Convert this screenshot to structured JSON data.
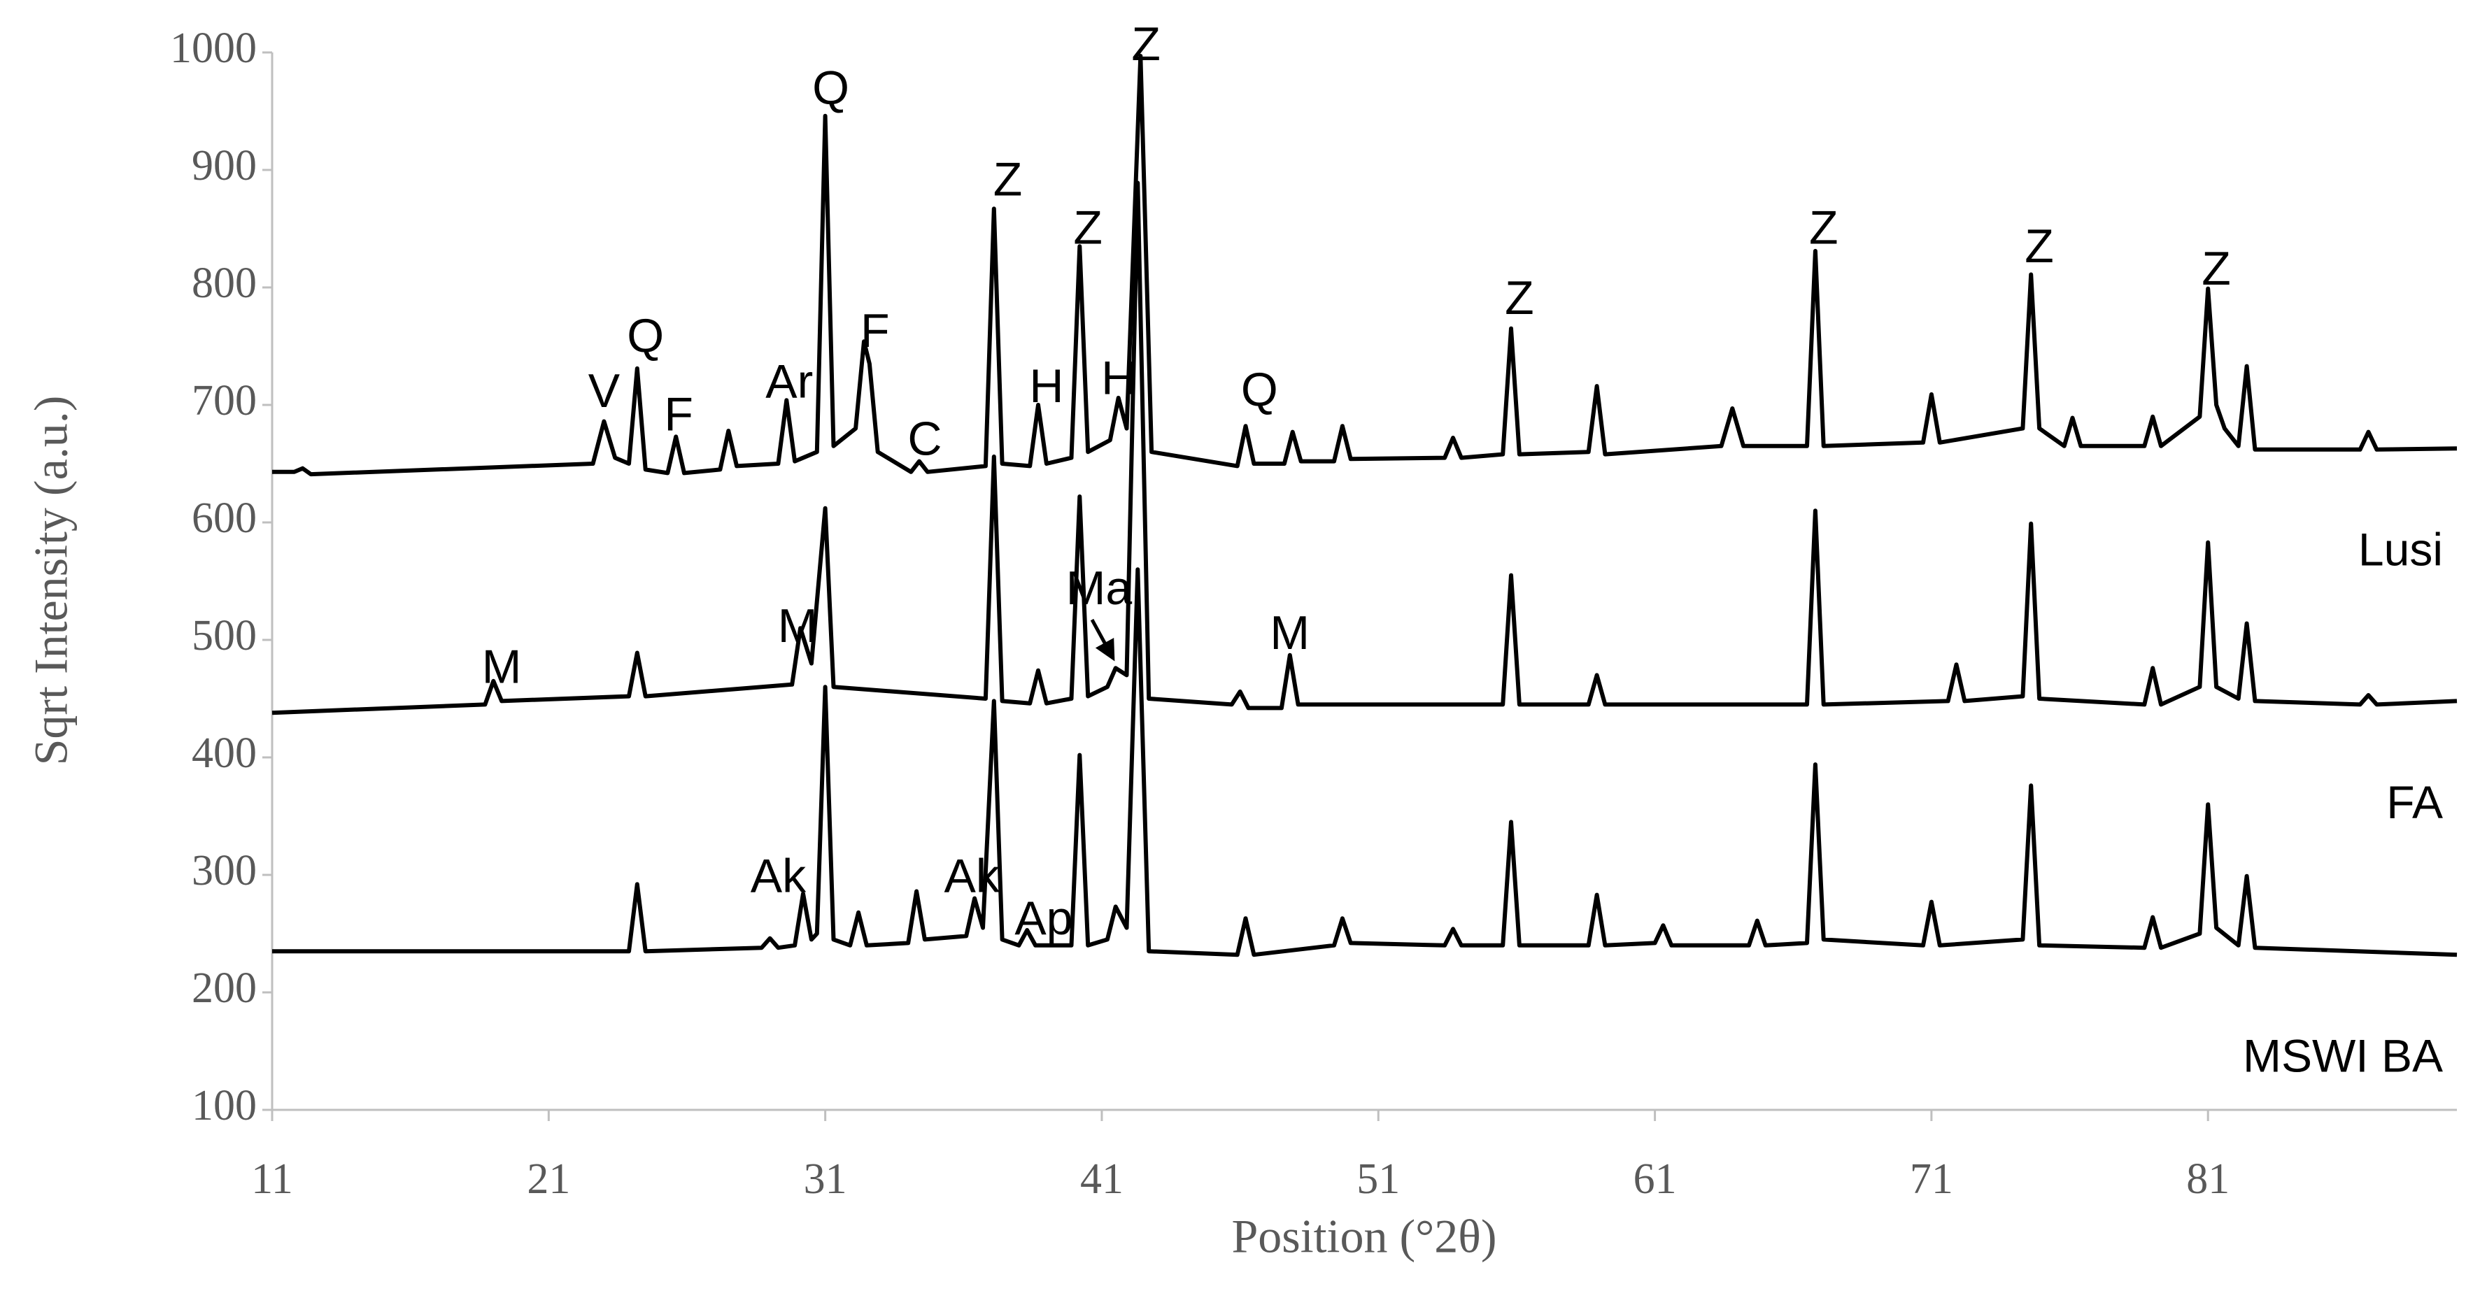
{
  "chart_data": {
    "type": "line",
    "x_label": "Position (°2θ)",
    "y_label": "Sqrt Intensity (a.u.)",
    "xlim": [
      11,
      90
    ],
    "xticks": [
      11,
      21,
      31,
      41,
      51,
      61,
      71,
      81
    ],
    "ylim": [
      100,
      1000
    ],
    "yticks": [
      100,
      200,
      300,
      400,
      500,
      600,
      700,
      800,
      900,
      1000
    ],
    "grid": false,
    "series": [
      {
        "name": "Lusi",
        "color": "#000000",
        "x": [
          11,
          11.8,
          12.1,
          12.4,
          22.6,
          23.0,
          23.4,
          23.9,
          24.2,
          24.5,
          25.3,
          25.6,
          25.9,
          27.2,
          27.5,
          27.8,
          29.3,
          29.6,
          29.9,
          30.7,
          31.0,
          31.3,
          32.1,
          32.4,
          32.6,
          32.9,
          34.1,
          34.4,
          34.7,
          36.8,
          37.1,
          37.4,
          38.4,
          38.7,
          39.0,
          39.9,
          40.2,
          40.5,
          41.3,
          41.6,
          41.9,
          42.4,
          42.8,
          45.9,
          46.2,
          46.5,
          47.6,
          47.9,
          48.2,
          49.4,
          49.7,
          50.0,
          53.4,
          53.7,
          54.0,
          55.5,
          55.8,
          56.1,
          58.6,
          58.9,
          59.2,
          63.4,
          63.8,
          64.2,
          66.5,
          66.8,
          67.1,
          70.7,
          71.0,
          71.3,
          74.3,
          74.6,
          74.9,
          75.8,
          76.1,
          76.4,
          78.7,
          79.0,
          79.3,
          80.7,
          81.0,
          81.3,
          81.6,
          82.1,
          82.4,
          82.7,
          86.5,
          86.8,
          87.1,
          90
        ],
        "values": [
          643,
          643,
          646,
          641,
          650,
          686,
          655,
          650,
          731,
          645,
          642,
          673,
          642,
          645,
          678,
          648,
          650,
          704,
          652,
          660,
          946,
          665,
          680,
          754,
          735,
          660,
          643,
          652,
          643,
          648,
          867,
          650,
          648,
          700,
          650,
          655,
          835,
          660,
          670,
          706,
          680,
          997,
          660,
          648,
          682,
          650,
          650,
          677,
          652,
          652,
          682,
          654,
          655,
          672,
          655,
          658,
          765,
          658,
          660,
          716,
          658,
          665,
          697,
          665,
          665,
          831,
          665,
          668,
          709,
          668,
          680,
          811,
          680,
          665,
          689,
          665,
          665,
          690,
          665,
          690,
          799,
          700,
          680,
          665,
          733,
          662,
          662,
          677,
          662,
          663
        ]
      },
      {
        "name": "FA",
        "color": "#000000",
        "x": [
          11,
          18.7,
          19.0,
          19.3,
          23.9,
          24.2,
          24.5,
          29.8,
          30.1,
          30.5,
          31.0,
          31.3,
          36.8,
          37.1,
          37.4,
          38.4,
          38.7,
          39.0,
          39.9,
          40.2,
          40.5,
          41.2,
          41.5,
          41.9,
          42.3,
          42.7,
          45.7,
          46.0,
          46.3,
          47.5,
          47.8,
          48.1,
          55.5,
          55.8,
          56.1,
          58.6,
          58.9,
          59.2,
          66.5,
          66.8,
          67.1,
          71.6,
          71.9,
          72.2,
          74.3,
          74.6,
          74.9,
          78.7,
          79.0,
          79.3,
          80.7,
          81.0,
          81.3,
          82.1,
          82.4,
          82.7,
          86.5,
          86.8,
          87.1,
          90
        ],
        "values": [
          438,
          445,
          465,
          448,
          452,
          489,
          452,
          462,
          510,
          480,
          612,
          460,
          450,
          656,
          448,
          446,
          474,
          446,
          450,
          622,
          452,
          460,
          476,
          470,
          889,
          450,
          445,
          456,
          442,
          442,
          487,
          445,
          445,
          555,
          445,
          445,
          470,
          445,
          445,
          610,
          445,
          448,
          479,
          448,
          452,
          599,
          450,
          445,
          476,
          445,
          460,
          583,
          460,
          450,
          514,
          448,
          445,
          453,
          445,
          448
        ]
      },
      {
        "name": "MSWI BA",
        "color": "#000000",
        "x": [
          11,
          23.9,
          24.2,
          24.5,
          28.7,
          29.0,
          29.3,
          29.9,
          30.2,
          30.5,
          30.7,
          31.0,
          31.3,
          31.9,
          32.2,
          32.5,
          34.0,
          34.3,
          34.6,
          36.1,
          36.4,
          36.7,
          37.1,
          37.4,
          38.0,
          38.3,
          38.6,
          39.9,
          40.2,
          40.5,
          41.2,
          41.5,
          41.9,
          42.3,
          42.7,
          45.9,
          46.2,
          46.5,
          49.4,
          49.7,
          50.0,
          53.4,
          53.7,
          54.0,
          55.5,
          55.8,
          56.1,
          58.6,
          58.9,
          59.2,
          61.0,
          61.3,
          61.6,
          64.4,
          64.7,
          65.0,
          66.5,
          66.8,
          67.1,
          70.7,
          71.0,
          71.3,
          74.3,
          74.6,
          74.9,
          78.7,
          79.0,
          79.3,
          80.7,
          81.0,
          81.3,
          82.1,
          82.4,
          82.7,
          90
        ],
        "values": [
          235,
          235,
          292,
          235,
          238,
          246,
          238,
          240,
          284,
          245,
          250,
          460,
          245,
          240,
          268,
          240,
          242,
          286,
          245,
          248,
          280,
          255,
          448,
          245,
          240,
          253,
          240,
          240,
          402,
          240,
          245,
          273,
          255,
          560,
          235,
          232,
          263,
          232,
          240,
          263,
          242,
          240,
          254,
          240,
          240,
          345,
          240,
          240,
          283,
          240,
          242,
          257,
          240,
          240,
          261,
          240,
          242,
          394,
          245,
          240,
          277,
          240,
          245,
          376,
          240,
          238,
          264,
          238,
          250,
          360,
          255,
          240,
          299,
          238,
          232
        ]
      }
    ],
    "annotations": [
      {
        "text": "Q",
        "x": 31.2,
        "y": 967
      },
      {
        "text": "Z",
        "x": 42.6,
        "y": 1004
      },
      {
        "text": "Z",
        "x": 37.6,
        "y": 889
      },
      {
        "text": "Z",
        "x": 40.5,
        "y": 848
      },
      {
        "text": "Z",
        "x": 67.1,
        "y": 848
      },
      {
        "text": "Z",
        "x": 74.9,
        "y": 832
      },
      {
        "text": "Z",
        "x": 81.3,
        "y": 813
      },
      {
        "text": "Z",
        "x": 56.1,
        "y": 788
      },
      {
        "text": "Q",
        "x": 24.5,
        "y": 756
      },
      {
        "text": "F",
        "x": 32.8,
        "y": 760
      },
      {
        "text": "V",
        "x": 23.0,
        "y": 709
      },
      {
        "text": "F",
        "x": 25.7,
        "y": 689
      },
      {
        "text": "Ar",
        "x": 29.7,
        "y": 717
      },
      {
        "text": "H",
        "x": 39.0,
        "y": 713
      },
      {
        "text": "H",
        "x": 41.6,
        "y": 720
      },
      {
        "text": "C",
        "x": 34.6,
        "y": 668
      },
      {
        "text": "Q",
        "x": 46.7,
        "y": 710
      },
      {
        "text": "M",
        "x": 19.3,
        "y": 474
      },
      {
        "text": "M",
        "x": 30.0,
        "y": 509
      },
      {
        "text": "Ma",
        "x": 40.9,
        "y": 541
      },
      {
        "text": "M",
        "x": 47.8,
        "y": 503
      },
      {
        "text": "Ak",
        "x": 29.3,
        "y": 296
      },
      {
        "text": "Ak",
        "x": 36.3,
        "y": 296
      },
      {
        "text": "Ap",
        "x": 38.9,
        "y": 260
      }
    ]
  }
}
